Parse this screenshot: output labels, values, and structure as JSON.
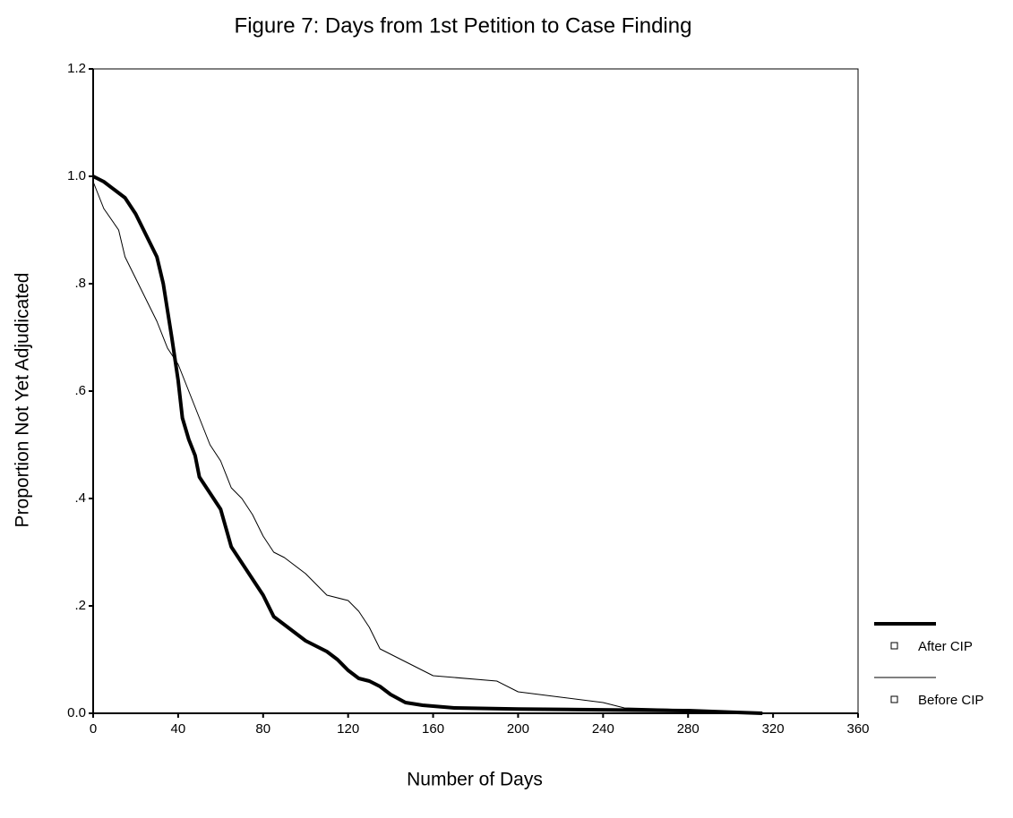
{
  "chart_data": {
    "type": "line",
    "title": "Figure 7: Days from 1st Petition to Case Finding",
    "x_label": "Number of Days",
    "y_label": "Proportion Not Yet Adjudicated",
    "xlim": [
      0,
      360
    ],
    "xticks": [
      0,
      40,
      80,
      120,
      160,
      200,
      240,
      280,
      320,
      360
    ],
    "ylim": [
      0,
      1.2
    ],
    "yticks": [
      {
        "value": 0,
        "label": "0.0"
      },
      {
        "value": 0.2,
        "label": ".2"
      },
      {
        "value": 0.4,
        "label": ".4"
      },
      {
        "value": 0.6,
        "label": ".6"
      },
      {
        "value": 0.8,
        "label": ".8"
      },
      {
        "value": 1,
        "label": "1.0"
      },
      1.2
    ],
    "legend": "right",
    "series": [
      {
        "name": "After CIP",
        "color": "#000000",
        "width": 4,
        "x": [
          0,
          5,
          10,
          15,
          20,
          25,
          30,
          33,
          35,
          37,
          40,
          42,
          45,
          48,
          50,
          55,
          60,
          65,
          70,
          75,
          80,
          85,
          90,
          95,
          100,
          110,
          115,
          120,
          125,
          130,
          135,
          140,
          147,
          155,
          170,
          200,
          250,
          280,
          300,
          315
        ],
        "values": [
          1.0,
          0.99,
          0.975,
          0.96,
          0.93,
          0.89,
          0.85,
          0.8,
          0.75,
          0.7,
          0.62,
          0.55,
          0.51,
          0.48,
          0.44,
          0.41,
          0.38,
          0.31,
          0.28,
          0.25,
          0.22,
          0.18,
          0.165,
          0.15,
          0.135,
          0.115,
          0.1,
          0.08,
          0.065,
          0.06,
          0.05,
          0.035,
          0.02,
          0.015,
          0.01,
          0.008,
          0.006,
          0.005,
          0.002,
          0
        ]
      },
      {
        "name": "Before CIP",
        "color": "#000000",
        "width": 1,
        "x": [
          0,
          5,
          12,
          15,
          20,
          25,
          30,
          35,
          40,
          45,
          50,
          55,
          60,
          65,
          70,
          75,
          80,
          85,
          90,
          100,
          110,
          120,
          125,
          130,
          135,
          140,
          145,
          150,
          160,
          190,
          200,
          220,
          240,
          250,
          270,
          300,
          310
        ],
        "values": [
          0.99,
          0.94,
          0.9,
          0.85,
          0.81,
          0.77,
          0.73,
          0.68,
          0.65,
          0.6,
          0.55,
          0.5,
          0.47,
          0.42,
          0.4,
          0.37,
          0.33,
          0.3,
          0.29,
          0.26,
          0.22,
          0.21,
          0.19,
          0.16,
          0.12,
          0.11,
          0.1,
          0.09,
          0.07,
          0.06,
          0.04,
          0.03,
          0.02,
          0.01,
          0.008,
          0.003,
          0
        ]
      }
    ]
  }
}
